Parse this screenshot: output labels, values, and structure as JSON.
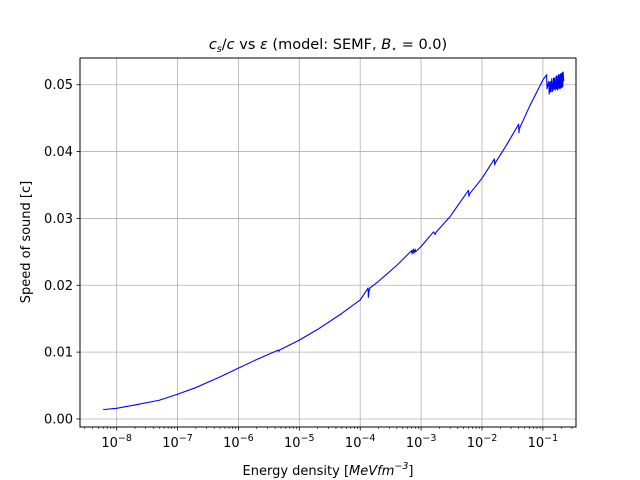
{
  "chart_data": {
    "type": "line",
    "title": {
      "prefix_italic_1": "c",
      "prefix_sub": "s",
      "prefix_mid": "/",
      "prefix_italic_2": "c",
      "vs": " vs ",
      "eps": "ε",
      "model_text": " (model: SEMF, ",
      "b_sym": "B",
      "b_sub": "⋆",
      "b_value": " = 0.0)"
    },
    "xlabel": {
      "text": "Energy density [",
      "unit_italic": "MeVfm",
      "unit_sup": "−3",
      "close": "]"
    },
    "ylabel": "Speed of sound [c]",
    "xscale": "log",
    "xlim": [
      2.5e-09,
      0.35
    ],
    "ylim": [
      -0.0012,
      0.054
    ],
    "grid": true,
    "line_color": "#0000ff",
    "x_ticks": [
      {
        "value": 1e-08,
        "base": "10",
        "exp": "−8"
      },
      {
        "value": 1e-07,
        "base": "10",
        "exp": "−7"
      },
      {
        "value": 1e-06,
        "base": "10",
        "exp": "−6"
      },
      {
        "value": 1e-05,
        "base": "10",
        "exp": "−5"
      },
      {
        "value": 0.0001,
        "base": "10",
        "exp": "−4"
      },
      {
        "value": 0.001,
        "base": "10",
        "exp": "−3"
      },
      {
        "value": 0.01,
        "base": "10",
        "exp": "−2"
      },
      {
        "value": 0.1,
        "base": "10",
        "exp": "−1"
      }
    ],
    "y_ticks": [
      {
        "value": 0.0,
        "label": "0.00"
      },
      {
        "value": 0.01,
        "label": "0.01"
      },
      {
        "value": 0.02,
        "label": "0.02"
      },
      {
        "value": 0.03,
        "label": "0.03"
      },
      {
        "value": 0.04,
        "label": "0.04"
      },
      {
        "value": 0.05,
        "label": "0.05"
      }
    ],
    "series": [
      {
        "x": [
          6e-09,
          1e-08,
          2e-08,
          5e-08,
          1e-07,
          2e-07,
          5e-07,
          1e-06,
          2e-06,
          4.5e-06,
          4.6e-06,
          4.7e-06,
          1e-05,
          2e-05,
          5e-05,
          0.0001,
          0.000135,
          0.000136,
          0.00014,
          0.000145,
          0.0002,
          0.0004,
          0.0007,
          0.00071,
          0.00075,
          0.00076,
          0.0008,
          0.00081,
          0.001,
          0.0016,
          0.0017,
          0.00175,
          0.003,
          0.006,
          0.0061,
          0.0063,
          0.01,
          0.016,
          0.0162,
          0.0165,
          0.025,
          0.04,
          0.0405,
          0.041,
          0.06,
          0.1,
          0.115,
          0.117,
          0.125,
          0.127,
          0.13,
          0.132,
          0.135,
          0.137,
          0.14,
          0.145,
          0.15,
          0.152,
          0.155,
          0.16,
          0.165,
          0.167,
          0.17,
          0.175,
          0.18,
          0.182,
          0.185,
          0.19,
          0.195,
          0.197,
          0.2,
          0.205,
          0.21,
          0.212,
          0.215,
          0.22
        ],
        "y": [
          0.0014,
          0.0016,
          0.0021,
          0.0028,
          0.0037,
          0.0047,
          0.0063,
          0.0076,
          0.0089,
          0.0103,
          0.0101,
          0.0103,
          0.0118,
          0.0134,
          0.0158,
          0.0178,
          0.0196,
          0.0182,
          0.0192,
          0.0196,
          0.0206,
          0.023,
          0.0252,
          0.0247,
          0.0254,
          0.0248,
          0.0254,
          0.025,
          0.0258,
          0.028,
          0.0276,
          0.0279,
          0.0303,
          0.0342,
          0.0333,
          0.0337,
          0.036,
          0.0389,
          0.038,
          0.0383,
          0.0409,
          0.0441,
          0.0428,
          0.0434,
          0.0467,
          0.0507,
          0.0515,
          0.0494,
          0.0505,
          0.0486,
          0.0503,
          0.0489,
          0.0505,
          0.049,
          0.0509,
          0.049,
          0.051,
          0.0493,
          0.051,
          0.0492,
          0.0513,
          0.0494,
          0.0513,
          0.0492,
          0.0515,
          0.0495,
          0.0515,
          0.0494,
          0.0516,
          0.0495,
          0.0517,
          0.0496,
          0.0518,
          0.0497,
          0.0519,
          0.0505
        ]
      }
    ]
  }
}
